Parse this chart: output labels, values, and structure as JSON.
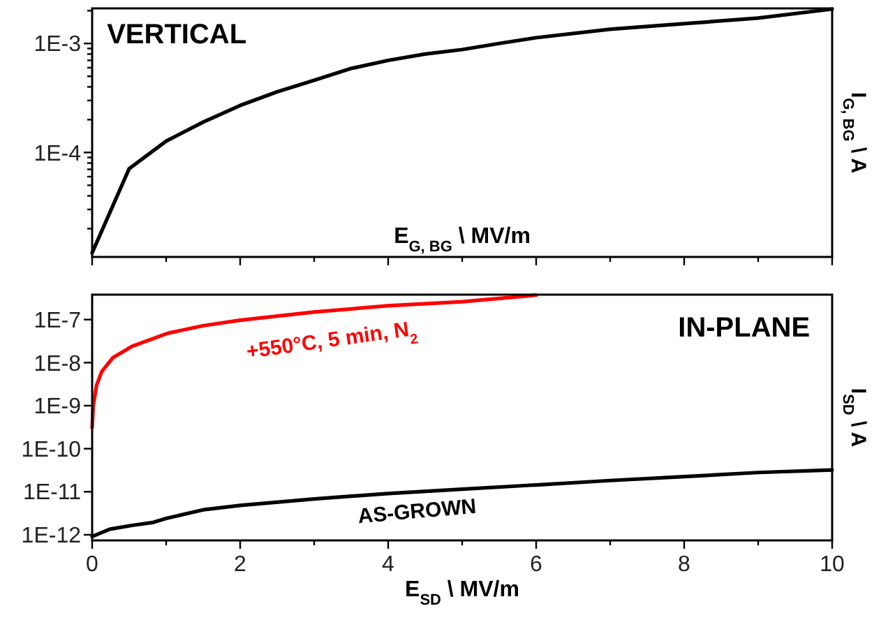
{
  "chart_data": [
    {
      "type": "line",
      "annotations": [
        "VERTICAL"
      ],
      "xlabel": "E$_{G, BG}$ \\ MV/m",
      "ylabel": "I$_{G, BG}$ \\ A",
      "log": "y",
      "tick_labels": "y",
      "xlim": [
        0,
        10
      ],
      "xticks": [
        0,
        {
          "value": 1,
          "label": null
        },
        {
          "value": 2,
          "label": null
        },
        {
          "value": 3,
          "label": null
        },
        {
          "value": 4,
          "label": null
        },
        {
          "value": 5,
          "label": null
        },
        {
          "value": 6,
          "label": null
        },
        {
          "value": 7,
          "label": null
        },
        {
          "value": 8,
          "label": null
        },
        {
          "value": 9,
          "label": null
        },
        {
          "value": 10,
          "label": null
        }
      ],
      "ylim": [
        1.1e-05,
        0.0021
      ],
      "yticks": [
        {
          "value": 2e-05,
          "label": null
        },
        {
          "value": 3e-05,
          "label": null
        },
        {
          "value": 4e-05,
          "label": null
        },
        {
          "value": 5e-05,
          "label": null
        },
        {
          "value": 6e-05,
          "label": null
        },
        {
          "value": 7e-05,
          "label": null
        },
        {
          "value": 8e-05,
          "label": null
        },
        {
          "value": 9e-05,
          "label": null
        },
        {
          "value": 0.0001,
          "label": "1E-4"
        },
        {
          "value": 0.0002,
          "label": null
        },
        {
          "value": 0.0003,
          "label": null
        },
        {
          "value": 0.0004,
          "label": null
        },
        {
          "value": 0.0005,
          "label": null
        },
        {
          "value": 0.0006,
          "label": null
        },
        {
          "value": 0.0007,
          "label": null
        },
        {
          "value": 0.0008,
          "label": null
        },
        {
          "value": 0.0009,
          "label": null
        },
        {
          "value": 0.001,
          "label": "1E-3"
        },
        {
          "value": 0.002,
          "label": null
        }
      ],
      "series": [
        {
          "color": "#000000",
          "x": [
            0,
            0.5,
            1,
            1.5,
            2,
            2.5,
            3,
            3.5,
            4,
            4.5,
            5,
            5.5,
            6,
            7,
            8,
            9,
            10
          ],
          "values": [
            1.2e-05,
            7.1e-05,
            0.000127,
            0.00019,
            0.00027,
            0.00036,
            0.00046,
            0.00059,
            0.0007,
            0.0008,
            0.00088,
            0.001,
            0.00113,
            0.00135,
            0.00152,
            0.00171,
            0.00207
          ]
        }
      ]
    },
    {
      "type": "line",
      "annotations": [
        "IN-PLANE"
      ],
      "xlabel": "E$_{SD}$ \\ MV/m",
      "ylabel": "I$_{SD}$ \\ A",
      "log": "y",
      "xlim": [
        0,
        10
      ],
      "xticks": [
        0,
        {
          "value": 1,
          "label": null
        },
        2,
        {
          "value": 3,
          "label": null
        },
        4,
        {
          "value": 5,
          "label": null
        },
        6,
        {
          "value": 7,
          "label": null
        },
        8,
        {
          "value": 9,
          "label": null
        },
        10
      ],
      "ylim": [
        7.4e-13,
        3.8e-07
      ],
      "yticks": [
        {
          "value": 1e-12,
          "label": "1E-12"
        },
        {
          "value": 1e-11,
          "label": "1E-11"
        },
        {
          "value": 1e-10,
          "label": "1E-10"
        },
        {
          "value": 1e-09,
          "label": "1E-9"
        },
        {
          "value": 1e-08,
          "label": "1E-8"
        },
        {
          "value": 1e-07,
          "label": "1E-7"
        }
      ],
      "series": [
        {
          "name": "+550°C, 5 min, N$_{2}$",
          "color": "#ff0000",
          "x": [
            0,
            0.015,
            0.06,
            0.13,
            0.28,
            0.54,
            1.02,
            1.5,
            2,
            3,
            4,
            5,
            6
          ],
          "values": [
            3.1e-10,
            1e-09,
            3e-09,
            6.2e-09,
            1.3e-08,
            2.4e-08,
            4.8e-08,
            7.2e-08,
            9.7e-08,
            1.5e-07,
            2.1e-07,
            2.6e-07,
            3.7e-07
          ]
        },
        {
          "name": "AS-GROWN",
          "color": "#000000",
          "x": [
            0,
            0.24,
            0.54,
            0.83,
            1,
            1.5,
            2,
            3,
            4,
            5,
            6,
            7,
            8,
            9,
            10
          ],
          "values": [
            9.1e-13,
            1.35e-12,
            1.65e-12,
            1.95e-12,
            2.4e-12,
            3.8e-12,
            4.8e-12,
            6.8e-12,
            9.1e-12,
            1.15e-11,
            1.44e-11,
            1.82e-11,
            2.24e-11,
            2.8e-11,
            3.2e-11
          ]
        }
      ]
    }
  ]
}
